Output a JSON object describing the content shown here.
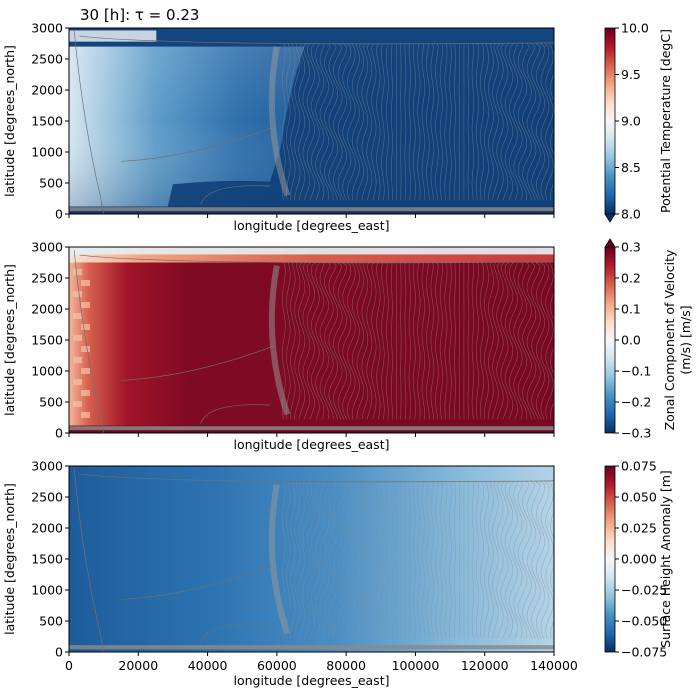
{
  "title": "30 [h]: τ = 0.23",
  "chart_data": [
    {
      "type": "heatmap",
      "xlabel": "longitude [degrees_east]",
      "ylabel": "latitude [degrees_north]",
      "xlim": [
        0,
        140000
      ],
      "ylim": [
        0,
        3000
      ],
      "yticks": [
        "0",
        "500",
        "1000",
        "1500",
        "2000",
        "2500",
        "3000"
      ],
      "xtick_labels_visible": false,
      "colormap": "RdBu_r",
      "colorbar": {
        "label": "Potential Temperature [degC]",
        "range": [
          8.0,
          10.0
        ],
        "ticks": [
          "8.0",
          "8.5",
          "9.0",
          "9.5",
          "10.0"
        ],
        "extend": "min"
      },
      "field_summary": {
        "dominant_value": 8.0,
        "west_region": [
          8.6,
          9.0
        ],
        "top_band_lat": [
          2700,
          3000
        ],
        "bottom_band_lat": [
          0,
          120
        ]
      }
    },
    {
      "type": "heatmap",
      "xlabel": "longitude [degrees_east]",
      "ylabel": "latitude [degrees_north]",
      "xlim": [
        0,
        140000
      ],
      "ylim": [
        0,
        3000
      ],
      "yticks": [
        "0",
        "500",
        "1000",
        "1500",
        "2000",
        "2500",
        "3000"
      ],
      "xtick_labels_visible": false,
      "colormap": "RdBu_r",
      "colorbar": {
        "label_lines": [
          "Zonal Component of Velocity",
          "(m/s) [m/s]"
        ],
        "range": [
          -0.3,
          0.3
        ],
        "ticks": [
          "0.3",
          "0.2",
          "0.1",
          "0.0",
          "−0.1",
          "−0.2",
          "−0.3"
        ],
        "extend": "max"
      },
      "field_summary": {
        "dominant_value": 0.3,
        "top_band_lat": [
          2750,
          3000
        ],
        "bottom_band_lat": [
          0,
          120
        ]
      }
    },
    {
      "type": "heatmap",
      "xlabel": "longitude [degrees_east]",
      "ylabel": "latitude [degrees_north]",
      "xlim": [
        0,
        140000
      ],
      "ylim": [
        0,
        3000
      ],
      "xticks": [
        "0",
        "20000",
        "40000",
        "60000",
        "80000",
        "100000",
        "120000",
        "140000"
      ],
      "yticks": [
        "0",
        "500",
        "1000",
        "1500",
        "2000",
        "2500",
        "3000"
      ],
      "colormap": "RdBu_r",
      "colorbar": {
        "label": "Surface Height Anomaly [m]",
        "range": [
          -0.075,
          0.075
        ],
        "ticks": [
          "0.075",
          "0.050",
          "0.025",
          "0.000",
          "−0.025",
          "−0.050",
          "−0.075"
        ],
        "extend": "neither"
      },
      "field_summary": {
        "west_value": -0.06,
        "east_value": -0.01
      }
    }
  ]
}
